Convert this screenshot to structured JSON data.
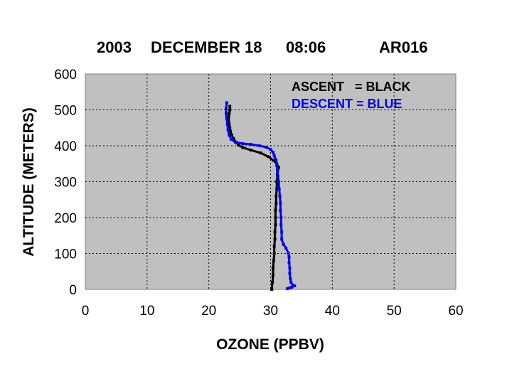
{
  "chart_data": {
    "type": "scatter",
    "title_parts": {
      "year": "2003",
      "date": "DECEMBER 18",
      "time": "08:06",
      "id": "AR016"
    },
    "xlabel": "OZONE (PPBV)",
    "ylabel": "ALTITUDE (METERS)",
    "xlim": [
      0,
      60
    ],
    "ylim": [
      0,
      600
    ],
    "xticks": [
      0,
      10,
      20,
      30,
      40,
      50,
      60
    ],
    "yticks": [
      0,
      100,
      200,
      300,
      400,
      500,
      600
    ],
    "grid": true,
    "plot_background": "#c0c0c0",
    "legend_position": "top-right",
    "legend": [
      {
        "label": "ASCENT   = BLACK",
        "color": "#000000"
      },
      {
        "label": "DESCENT = BLUE",
        "color": "#0000ff"
      }
    ],
    "series": [
      {
        "color": "#000000",
        "points": [
          [
            30.2,
            0
          ],
          [
            30.3,
            20
          ],
          [
            30.4,
            40
          ],
          [
            30.4,
            60
          ],
          [
            30.5,
            80
          ],
          [
            30.6,
            100
          ],
          [
            30.6,
            120
          ],
          [
            30.7,
            140
          ],
          [
            30.7,
            160
          ],
          [
            30.8,
            180
          ],
          [
            30.8,
            200
          ],
          [
            30.8,
            220
          ],
          [
            30.9,
            240
          ],
          [
            30.9,
            260
          ],
          [
            31.0,
            280
          ],
          [
            31.0,
            300
          ],
          [
            31.1,
            320
          ],
          [
            31.3,
            340
          ],
          [
            31.0,
            350
          ],
          [
            30.4,
            360
          ],
          [
            29.6,
            370
          ],
          [
            28.4,
            380
          ],
          [
            26.8,
            388
          ],
          [
            25.5,
            395
          ],
          [
            24.8,
            402
          ],
          [
            24.4,
            410
          ],
          [
            24.0,
            420
          ],
          [
            23.7,
            430
          ],
          [
            23.5,
            440
          ],
          [
            23.4,
            450
          ],
          [
            23.3,
            460
          ],
          [
            23.2,
            470
          ],
          [
            23.2,
            480
          ],
          [
            23.3,
            490
          ],
          [
            23.4,
            500
          ],
          [
            23.4,
            510
          ]
        ]
      },
      {
        "color": "#0000ff",
        "points": [
          [
            22.9,
            520
          ],
          [
            22.8,
            505
          ],
          [
            22.8,
            490
          ],
          [
            22.9,
            475
          ],
          [
            23.0,
            460
          ],
          [
            23.1,
            445
          ],
          [
            23.3,
            430
          ],
          [
            23.6,
            418
          ],
          [
            24.3,
            410
          ],
          [
            25.5,
            406
          ],
          [
            26.8,
            404
          ],
          [
            28.2,
            400
          ],
          [
            29.3,
            396
          ],
          [
            30.0,
            390
          ],
          [
            30.4,
            382
          ],
          [
            30.6,
            372
          ],
          [
            30.9,
            360
          ],
          [
            31.0,
            345
          ],
          [
            31.1,
            330
          ],
          [
            31.2,
            315
          ],
          [
            31.3,
            300
          ],
          [
            31.4,
            280
          ],
          [
            31.5,
            260
          ],
          [
            31.6,
            240
          ],
          [
            31.6,
            220
          ],
          [
            31.7,
            200
          ],
          [
            31.7,
            180
          ],
          [
            31.8,
            160
          ],
          [
            31.8,
            140
          ],
          [
            32.1,
            125
          ],
          [
            32.5,
            115
          ],
          [
            32.9,
            100
          ],
          [
            33.0,
            90
          ],
          [
            33.0,
            75
          ],
          [
            33.1,
            60
          ],
          [
            33.1,
            45
          ],
          [
            33.2,
            30
          ],
          [
            33.3,
            20
          ],
          [
            33.6,
            12
          ],
          [
            33.9,
            10
          ],
          [
            33.4,
            6
          ],
          [
            33.0,
            4
          ],
          [
            32.7,
            2
          ]
        ]
      }
    ]
  }
}
